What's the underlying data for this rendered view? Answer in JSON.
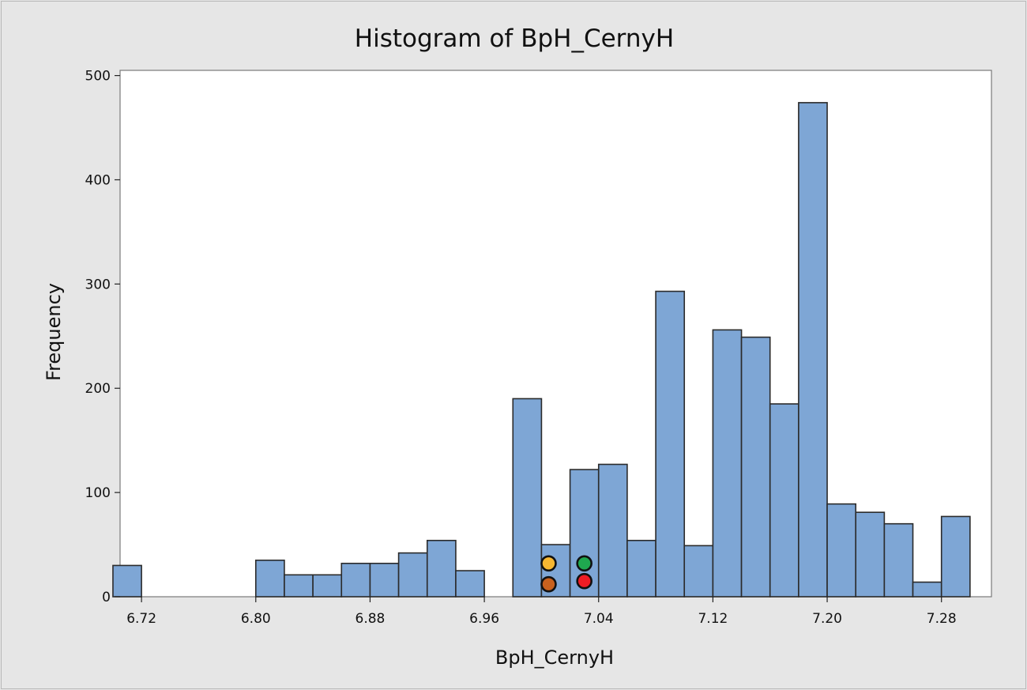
{
  "chart_data": {
    "type": "bar",
    "title": "Histogram of BpH_CernyH",
    "xlabel": "BpH_CernyH",
    "ylabel": "Frequency",
    "bin_width": 0.02,
    "bin_centers": [
      6.71,
      6.73,
      6.75,
      6.77,
      6.79,
      6.81,
      6.83,
      6.85,
      6.87,
      6.89,
      6.91,
      6.93,
      6.95,
      6.97,
      6.99,
      7.01,
      7.03,
      7.05,
      7.07,
      7.09,
      7.11,
      7.13,
      7.15,
      7.17,
      7.19,
      7.21,
      7.23,
      7.25,
      7.27,
      7.29
    ],
    "values": [
      30,
      0,
      0,
      0,
      0,
      35,
      21,
      21,
      32,
      32,
      42,
      54,
      25,
      0,
      190,
      50,
      122,
      127,
      54,
      293,
      49,
      256,
      249,
      185,
      474,
      89,
      81,
      70,
      14,
      77
    ],
    "xlim": [
      6.705,
      7.315
    ],
    "ylim": [
      0,
      505
    ],
    "x_ticks": [
      "6.72",
      "6.80",
      "6.88",
      "6.96",
      "7.04",
      "7.12",
      "7.20",
      "7.28"
    ],
    "y_ticks": [
      "0",
      "100",
      "200",
      "300",
      "400",
      "500"
    ],
    "grid": false,
    "legend": "none",
    "markers": [
      {
        "color": "#f7b731",
        "x": 7.005,
        "y": 32
      },
      {
        "color": "#c8611e",
        "x": 7.005,
        "y": 12
      },
      {
        "color": "#1fa84f",
        "x": 7.03,
        "y": 32
      },
      {
        "color": "#ee1c24",
        "x": 7.03,
        "y": 15
      }
    ],
    "colors": {
      "bar_fill": "#7ea6d5",
      "bar_edge": "#2b2b2b",
      "background": "#e6e6e6",
      "plot_bg": "#ffffff"
    }
  }
}
